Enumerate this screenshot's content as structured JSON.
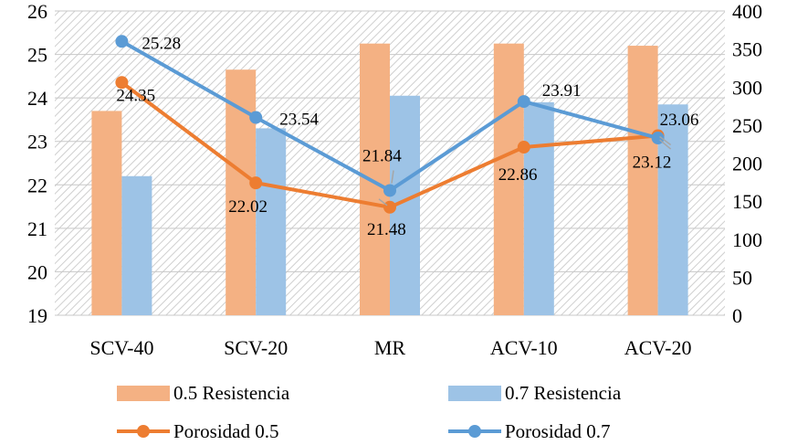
{
  "chart_data": {
    "type": "bar",
    "categories": [
      "SCV-40",
      "SCV-20",
      "MR",
      "ACV-10",
      "ACV-20"
    ],
    "y_left": {
      "min": 19,
      "max": 26,
      "step": 1
    },
    "y_right": {
      "min": 0,
      "max": 400,
      "step": 50
    },
    "grid": true,
    "legend_position": "bottom",
    "series": [
      {
        "name": "0.5 Resistencia",
        "kind": "bar",
        "axis": "left",
        "color": "#f4b183",
        "values": [
          23.7,
          24.65,
          25.25,
          25.25,
          25.2
        ]
      },
      {
        "name": "0.7 Resistencia",
        "kind": "bar",
        "axis": "left",
        "color": "#9dc3e6",
        "values": [
          22.2,
          23.3,
          24.05,
          23.9,
          23.85
        ]
      },
      {
        "name": "Porosidad 0.5",
        "kind": "line",
        "axis": "right",
        "color": "#ed7d31",
        "values": [
          306,
          174,
          142,
          221,
          236
        ],
        "labels": [
          "24.35",
          "22.02",
          "21.48",
          "22.86",
          "23.12"
        ]
      },
      {
        "name": "Porosidad 0.7",
        "kind": "line",
        "axis": "right",
        "color": "#5b9bd5",
        "values": [
          360,
          260,
          164,
          281,
          233
        ],
        "labels": [
          "25.28",
          "23.54",
          "21.84",
          "23.91",
          "23.06"
        ]
      }
    ]
  }
}
